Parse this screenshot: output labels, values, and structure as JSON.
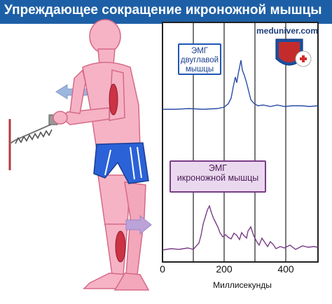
{
  "title": "Упреждающее сокращение икроножной мышцы",
  "logo": {
    "text": "meduniver.com"
  },
  "panels": [
    {
      "id": "biceps",
      "label_lines": [
        "ЭМГ",
        "двуглавой",
        "мышцы"
      ],
      "color": "#2a4ca8"
    },
    {
      "id": "gastrocnemius",
      "label_lines": [
        "ЭМГ",
        "икроножной мышцы"
      ],
      "color": "#7a3c86"
    }
  ],
  "x_axis": {
    "label": "Миллисекунды",
    "ticks": [
      "0",
      "200",
      "400"
    ],
    "range_ms": [
      0,
      500
    ],
    "gridlines_ms": [
      100,
      200,
      300,
      400,
      500
    ]
  },
  "colors": {
    "title_bar": "#1d5fa6",
    "body": "#f6b3c5",
    "body_outline": "#d56a88",
    "shorts": "#2b62d8",
    "arrow": "#9c86c6",
    "muscle": "#cc3344"
  }
}
